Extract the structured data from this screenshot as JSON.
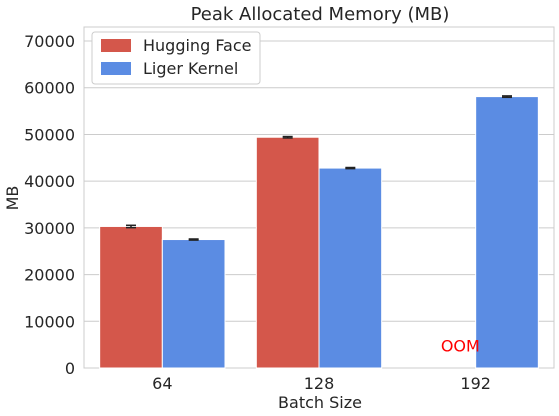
{
  "chart_data": {
    "type": "bar",
    "title": "Peak Allocated Memory (MB)",
    "xlabel": "Batch Size",
    "ylabel": "MB",
    "categories": [
      "64",
      "128",
      "192"
    ],
    "ylim": [
      0,
      73000
    ],
    "yticks": [
      0,
      10000,
      20000,
      30000,
      40000,
      50000,
      60000,
      70000
    ],
    "grid": "horizontal",
    "legend_position": "top-left",
    "series": [
      {
        "name": "Hugging Face",
        "color": "#d4574b",
        "values": [
          30300,
          49400,
          null
        ],
        "errors": [
          250,
          150,
          null
        ]
      },
      {
        "name": "Liger Kernel",
        "color": "#5b8ce3",
        "values": [
          27500,
          42800,
          58100
        ],
        "errors": [
          120,
          120,
          150
        ]
      }
    ],
    "annotations": [
      {
        "text": "OOM",
        "category": "192",
        "series": "Hugging Face",
        "y": 4800,
        "color": "#ff0000"
      }
    ]
  }
}
